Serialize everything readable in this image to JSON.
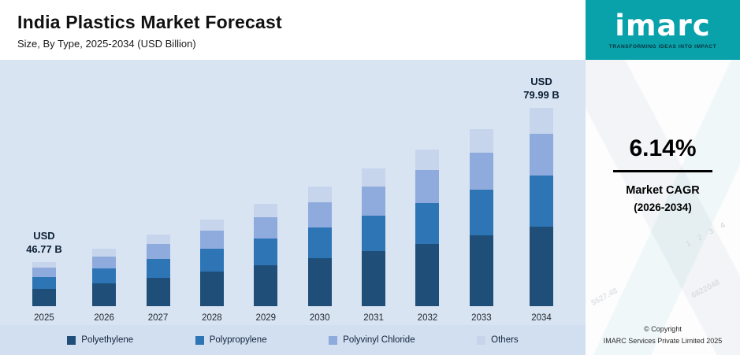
{
  "header": {
    "title": "India Plastics Market Forecast",
    "subtitle": "Size, By Type, 2025-2034 (USD Billion)"
  },
  "chart_data": {
    "type": "bar",
    "stacked": true,
    "title": "India Plastics Market Forecast",
    "subtitle": "Size, By Type, 2025-2034 (USD Billion)",
    "unit": "USD Billion",
    "categories": [
      "2025",
      "2026",
      "2027",
      "2028",
      "2029",
      "2030",
      "2031",
      "2032",
      "2033",
      "2034"
    ],
    "totals": [
      46.77,
      49.64,
      52.69,
      55.93,
      59.36,
      63.01,
      66.88,
      70.98,
      75.34,
      79.99
    ],
    "series": [
      {
        "name": "Polyethylene",
        "color": "#1f4e79",
        "values": [
          18.71,
          19.86,
          21.08,
          22.37,
          23.74,
          25.2,
          26.75,
          28.39,
          30.14,
          32.0
        ]
      },
      {
        "name": "Polypropylene",
        "color": "#2e75b6",
        "values": [
          12.16,
          12.91,
          13.7,
          14.54,
          15.43,
          16.38,
          17.39,
          18.45,
          19.59,
          20.8
        ]
      },
      {
        "name": "Polyvinyl Chloride",
        "color": "#8faadc",
        "values": [
          9.82,
          10.42,
          11.07,
          11.75,
          12.47,
          13.23,
          14.04,
          14.91,
          15.82,
          16.8
        ]
      },
      {
        "name": "Others",
        "color": "#c6d4ec",
        "values": [
          6.08,
          6.45,
          6.85,
          7.27,
          7.72,
          8.19,
          8.69,
          9.23,
          9.79,
          10.39
        ]
      }
    ],
    "annotations": [
      {
        "category": "2025",
        "lines": [
          "USD",
          "46.77 B"
        ]
      },
      {
        "category": "2034",
        "lines": [
          "USD",
          "79.99 B"
        ]
      }
    ],
    "legend_position": "bottom",
    "axes_visible": false,
    "grid": false
  },
  "sidebar": {
    "logo_text": "imarc",
    "tagline": "TRANSFORMING IDEAS INTO IMPACT",
    "cagr_value": "6.14%",
    "cagr_label_1": "Market CAGR",
    "cagr_label_2": "(2026-2034)",
    "copyright_1": "© Copyright",
    "copyright_2": "IMARC Services Private Limited 2025",
    "watermarks": [
      "1 2 3 4",
      "6822048",
      "$627.48"
    ]
  },
  "colors": {
    "brand_teal": "#0aa2aa",
    "chart_background": "#d9e4f3",
    "annotation_text": "#0b1f33"
  }
}
